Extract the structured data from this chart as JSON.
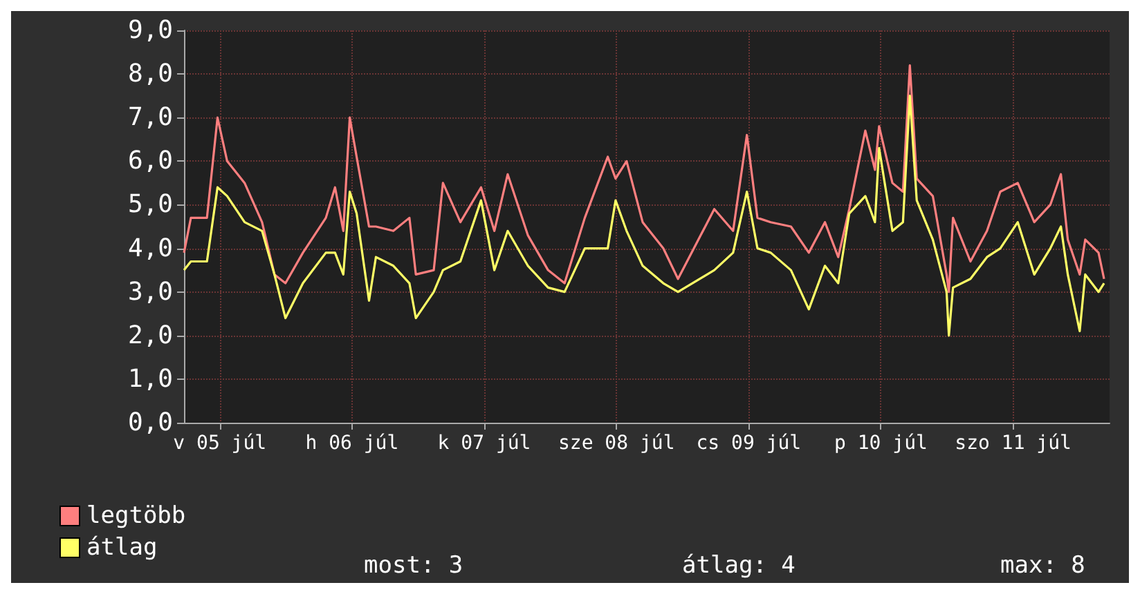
{
  "chart_data": {
    "type": "line",
    "x": [
      "--07-05T05:30",
      "--07-05T06:45",
      "--07-05T09:40",
      "--07-05T11:35",
      "--07-05T13:20",
      "--07-05T16:30",
      "--07-05T19:40",
      "--07-05T21:55",
      "--07-05T23:55",
      "--07-06T03:05",
      "--07-06T07:15",
      "--07-06T08:55",
      "--07-06T10:25",
      "--07-06T11:35",
      "--07-06T12:50",
      "--07-06T15:05",
      "--07-06T16:20",
      "--07-06T19:30",
      "--07-06T22:25",
      "--07-06T23:35",
      "--07-07T02:50",
      "--07-07T04:30",
      "--07-07T07:40",
      "--07-07T11:25",
      "--07-07T13:50",
      "--07-07T16:15",
      "--07-07T19:55",
      "--07-07T23:35",
      "--07-08T02:35",
      "--07-08T06:15",
      "--07-08T10:25",
      "--07-08T11:50",
      "--07-08T13:50",
      "--07-08T16:45",
      "--07-08T20:30",
      "--07-08T23:10",
      "--07-09T05:45",
      "--07-09T09:10",
      "--07-09T11:40",
      "--07-09T13:35",
      "--07-09T16:00",
      "--07-09T19:40",
      "--07-09T22:55",
      "--07-10T01:50",
      "--07-10T04:15",
      "--07-10T06:15",
      "--07-10T09:10",
      "--07-10T10:55",
      "--07-10T11:40",
      "--07-10T14:05",
      "--07-10T16:00",
      "--07-10T17:15",
      "--07-10T18:30",
      "--07-10T21:25",
      "--07-10T23:55",
      "--07-11T00:20",
      "--07-11T01:05",
      "--07-11T04:15",
      "--07-11T07:15",
      "--07-11T09:40",
      "--07-11T12:50",
      "--07-11T15:50",
      "--07-11T18:45",
      "--07-11T20:40",
      "--07-11T21:55",
      "--07-12T00:05",
      "--07-12T01:05",
      "--07-12T03:30",
      "--07-12T04:30"
    ],
    "series": [
      {
        "name": "legtöbb",
        "color": "#ff7f7f",
        "values": [
          3.9,
          4.7,
          4.7,
          7.0,
          6.0,
          5.5,
          4.6,
          3.4,
          3.2,
          3.9,
          4.7,
          5.4,
          4.4,
          7.0,
          6.1,
          4.5,
          4.5,
          4.4,
          4.7,
          3.4,
          3.5,
          5.5,
          4.6,
          5.4,
          4.4,
          5.7,
          4.3,
          3.5,
          3.2,
          4.7,
          6.1,
          5.6,
          6.0,
          4.6,
          4.0,
          3.3,
          4.9,
          4.4,
          6.6,
          4.7,
          4.6,
          4.5,
          3.9,
          4.6,
          3.8,
          4.9,
          6.7,
          5.8,
          6.8,
          5.5,
          5.3,
          8.2,
          5.6,
          5.2,
          3.4,
          3.0,
          4.7,
          3.7,
          4.4,
          5.3,
          5.5,
          4.6,
          5.0,
          5.7,
          4.2,
          3.4,
          4.2,
          3.9,
          3.3
        ]
      },
      {
        "name": "átlag",
        "color": "#ffff66",
        "values": [
          3.5,
          3.7,
          3.7,
          5.4,
          5.2,
          4.6,
          4.4,
          3.4,
          2.4,
          3.2,
          3.9,
          3.9,
          3.4,
          5.3,
          4.8,
          2.8,
          3.8,
          3.6,
          3.2,
          2.4,
          3.0,
          3.5,
          3.7,
          5.1,
          3.5,
          4.4,
          3.6,
          3.1,
          3.0,
          4.0,
          4.0,
          5.1,
          4.4,
          3.6,
          3.2,
          3.0,
          3.5,
          3.9,
          5.3,
          4.0,
          3.9,
          3.5,
          2.6,
          3.6,
          3.2,
          4.8,
          5.2,
          4.6,
          6.3,
          4.4,
          4.6,
          7.5,
          5.1,
          4.2,
          3.0,
          2.0,
          3.1,
          3.3,
          3.8,
          4.0,
          4.6,
          3.4,
          4.0,
          4.5,
          3.4,
          2.1,
          3.4,
          3.0,
          3.2
        ]
      }
    ],
    "xlim": [
      "--07-05T05:30",
      "--07-12T05:30"
    ],
    "xticks": [
      {
        "value": "--07-05T12:00",
        "label": "v 05 júl"
      },
      {
        "value": "--07-06T12:00",
        "label": "h 06 júl"
      },
      {
        "value": "--07-07T12:00",
        "label": "k 07 júl"
      },
      {
        "value": "--07-08T12:00",
        "label": "sze 08 júl"
      },
      {
        "value": "--07-09T12:00",
        "label": "cs 09 júl"
      },
      {
        "value": "--07-10T12:00",
        "label": "p 10 júl"
      },
      {
        "value": "--07-11T12:00",
        "label": "szo 11 júl"
      }
    ],
    "ylim": [
      0,
      9
    ],
    "yticks": [
      {
        "value": 0,
        "label": "0,0"
      },
      {
        "value": 1,
        "label": "1,0"
      },
      {
        "value": 2,
        "label": "2,0"
      },
      {
        "value": 3,
        "label": "3,0"
      },
      {
        "value": 4,
        "label": "4,0"
      },
      {
        "value": 5,
        "label": "5,0"
      },
      {
        "value": 6,
        "label": "6,0"
      },
      {
        "value": 7,
        "label": "7,0"
      },
      {
        "value": 8,
        "label": "8,0"
      },
      {
        "value": 9,
        "label": "9,0"
      }
    ],
    "grid": true,
    "legend": "bottom left",
    "marker": "none",
    "line_style": "solid",
    "annotations": [
      "most: 3",
      "átlag: 4",
      "max: 8"
    ]
  }
}
